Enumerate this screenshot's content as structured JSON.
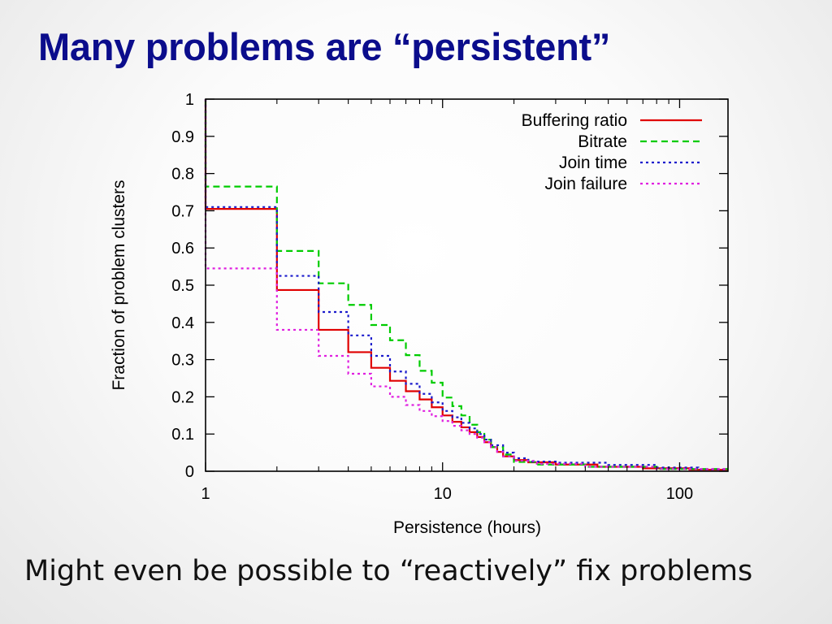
{
  "slide": {
    "title": "Many problems are “persistent”",
    "subtitle": "Might even be possible to “reactively” fix problems"
  },
  "chart_data": {
    "type": "line",
    "step": true,
    "xscale": "log",
    "xlim": [
      1,
      160
    ],
    "ylim": [
      0,
      1
    ],
    "xlabel": "Persistence (hours)",
    "ylabel": "Fraction of problem clusters",
    "xticks": [
      1,
      10,
      100
    ],
    "xtick_labels": [
      "1",
      "10",
      "100"
    ],
    "yticks": [
      0,
      0.1,
      0.2,
      0.3,
      0.4,
      0.5,
      0.6,
      0.7,
      0.8,
      0.9,
      1
    ],
    "ytick_labels": [
      "0",
      "0.1",
      "0.2",
      "0.3",
      "0.4",
      "0.5",
      "0.6",
      "0.7",
      "0.8",
      "0.9",
      "1"
    ],
    "legend_position": "top-right",
    "grid": false,
    "series": [
      {
        "name": "Buffering ratio",
        "color": "#e00000",
        "dash": "solid",
        "points": [
          [
            1,
            1.0
          ],
          [
            1,
            0.705
          ],
          [
            2,
            0.705
          ],
          [
            2,
            0.487
          ],
          [
            3,
            0.487
          ],
          [
            3,
            0.38
          ],
          [
            4,
            0.38
          ],
          [
            4,
            0.32
          ],
          [
            5,
            0.32
          ],
          [
            5,
            0.278
          ],
          [
            6,
            0.278
          ],
          [
            6,
            0.243
          ],
          [
            7,
            0.243
          ],
          [
            7,
            0.215
          ],
          [
            8,
            0.215
          ],
          [
            8,
            0.193
          ],
          [
            9,
            0.193
          ],
          [
            9,
            0.172
          ],
          [
            10,
            0.172
          ],
          [
            10,
            0.15
          ],
          [
            11,
            0.15
          ],
          [
            11,
            0.133
          ],
          [
            12,
            0.133
          ],
          [
            12,
            0.118
          ],
          [
            13,
            0.118
          ],
          [
            13,
            0.105
          ],
          [
            14,
            0.105
          ],
          [
            14,
            0.092
          ],
          [
            15,
            0.092
          ],
          [
            15,
            0.078
          ],
          [
            16,
            0.078
          ],
          [
            16,
            0.065
          ],
          [
            17,
            0.065
          ],
          [
            17,
            0.052
          ],
          [
            18,
            0.052
          ],
          [
            18,
            0.04
          ],
          [
            20,
            0.04
          ],
          [
            20,
            0.03
          ],
          [
            23,
            0.03
          ],
          [
            23,
            0.024
          ],
          [
            30,
            0.024
          ],
          [
            30,
            0.018
          ],
          [
            45,
            0.018
          ],
          [
            45,
            0.012
          ],
          [
            70,
            0.012
          ],
          [
            70,
            0.008
          ],
          [
            110,
            0.008
          ],
          [
            110,
            0.004
          ],
          [
            160,
            0.004
          ]
        ]
      },
      {
        "name": "Bitrate",
        "color": "#00cc00",
        "dash": "dashed",
        "points": [
          [
            1,
            1.0
          ],
          [
            1,
            0.765
          ],
          [
            2,
            0.765
          ],
          [
            2,
            0.592
          ],
          [
            3,
            0.592
          ],
          [
            3,
            0.505
          ],
          [
            4,
            0.505
          ],
          [
            4,
            0.447
          ],
          [
            5,
            0.447
          ],
          [
            5,
            0.393
          ],
          [
            6,
            0.393
          ],
          [
            6,
            0.352
          ],
          [
            7,
            0.352
          ],
          [
            7,
            0.312
          ],
          [
            8,
            0.312
          ],
          [
            8,
            0.27
          ],
          [
            9,
            0.27
          ],
          [
            9,
            0.238
          ],
          [
            10,
            0.238
          ],
          [
            10,
            0.198
          ],
          [
            11,
            0.198
          ],
          [
            11,
            0.175
          ],
          [
            12,
            0.175
          ],
          [
            12,
            0.15
          ],
          [
            13,
            0.15
          ],
          [
            13,
            0.125
          ],
          [
            14,
            0.125
          ],
          [
            14,
            0.105
          ],
          [
            15,
            0.105
          ],
          [
            15,
            0.085
          ],
          [
            16,
            0.085
          ],
          [
            16,
            0.065
          ],
          [
            18,
            0.065
          ],
          [
            18,
            0.045
          ],
          [
            20,
            0.045
          ],
          [
            20,
            0.025
          ],
          [
            25,
            0.025
          ],
          [
            25,
            0.018
          ],
          [
            40,
            0.018
          ],
          [
            40,
            0.012
          ],
          [
            80,
            0.012
          ],
          [
            80,
            0.006
          ],
          [
            160,
            0.006
          ]
        ]
      },
      {
        "name": "Join time",
        "color": "#1a1acc",
        "dash": "dotted",
        "points": [
          [
            1,
            1.0
          ],
          [
            1,
            0.71
          ],
          [
            2,
            0.71
          ],
          [
            2,
            0.525
          ],
          [
            3,
            0.525
          ],
          [
            3,
            0.428
          ],
          [
            4,
            0.428
          ],
          [
            4,
            0.365
          ],
          [
            5,
            0.365
          ],
          [
            5,
            0.31
          ],
          [
            6,
            0.31
          ],
          [
            6,
            0.268
          ],
          [
            7,
            0.268
          ],
          [
            7,
            0.235
          ],
          [
            8,
            0.235
          ],
          [
            8,
            0.208
          ],
          [
            9,
            0.208
          ],
          [
            9,
            0.185
          ],
          [
            10,
            0.185
          ],
          [
            10,
            0.162
          ],
          [
            11,
            0.162
          ],
          [
            11,
            0.145
          ],
          [
            12,
            0.145
          ],
          [
            12,
            0.13
          ],
          [
            13,
            0.13
          ],
          [
            13,
            0.115
          ],
          [
            14,
            0.115
          ],
          [
            14,
            0.1
          ],
          [
            15,
            0.1
          ],
          [
            15,
            0.085
          ],
          [
            16,
            0.085
          ],
          [
            16,
            0.07
          ],
          [
            18,
            0.07
          ],
          [
            18,
            0.05
          ],
          [
            20,
            0.05
          ],
          [
            20,
            0.035
          ],
          [
            23,
            0.035
          ],
          [
            23,
            0.026
          ],
          [
            30,
            0.026
          ],
          [
            30,
            0.023
          ],
          [
            50,
            0.023
          ],
          [
            50,
            0.017
          ],
          [
            80,
            0.017
          ],
          [
            80,
            0.01
          ],
          [
            120,
            0.01
          ],
          [
            120,
            0.005
          ],
          [
            160,
            0.005
          ]
        ]
      },
      {
        "name": "Join failure",
        "color": "#e020e0",
        "dash": "dotted",
        "points": [
          [
            1,
            1.0
          ],
          [
            1,
            0.545
          ],
          [
            2,
            0.545
          ],
          [
            2,
            0.38
          ],
          [
            3,
            0.38
          ],
          [
            3,
            0.31
          ],
          [
            4,
            0.31
          ],
          [
            4,
            0.262
          ],
          [
            5,
            0.262
          ],
          [
            5,
            0.228
          ],
          [
            6,
            0.228
          ],
          [
            6,
            0.2
          ],
          [
            7,
            0.2
          ],
          [
            7,
            0.178
          ],
          [
            8,
            0.178
          ],
          [
            8,
            0.162
          ],
          [
            9,
            0.162
          ],
          [
            9,
            0.148
          ],
          [
            10,
            0.148
          ],
          [
            10,
            0.135
          ],
          [
            11,
            0.135
          ],
          [
            11,
            0.122
          ],
          [
            12,
            0.122
          ],
          [
            12,
            0.11
          ],
          [
            13,
            0.11
          ],
          [
            13,
            0.1
          ],
          [
            14,
            0.1
          ],
          [
            14,
            0.09
          ],
          [
            15,
            0.09
          ],
          [
            15,
            0.078
          ],
          [
            16,
            0.078
          ],
          [
            16,
            0.065
          ],
          [
            17,
            0.065
          ],
          [
            17,
            0.052
          ],
          [
            18,
            0.052
          ],
          [
            18,
            0.04
          ],
          [
            20,
            0.04
          ],
          [
            20,
            0.028
          ],
          [
            25,
            0.028
          ],
          [
            25,
            0.02
          ],
          [
            40,
            0.02
          ],
          [
            40,
            0.012
          ],
          [
            80,
            0.012
          ],
          [
            80,
            0.006
          ],
          [
            160,
            0.006
          ]
        ]
      }
    ]
  }
}
